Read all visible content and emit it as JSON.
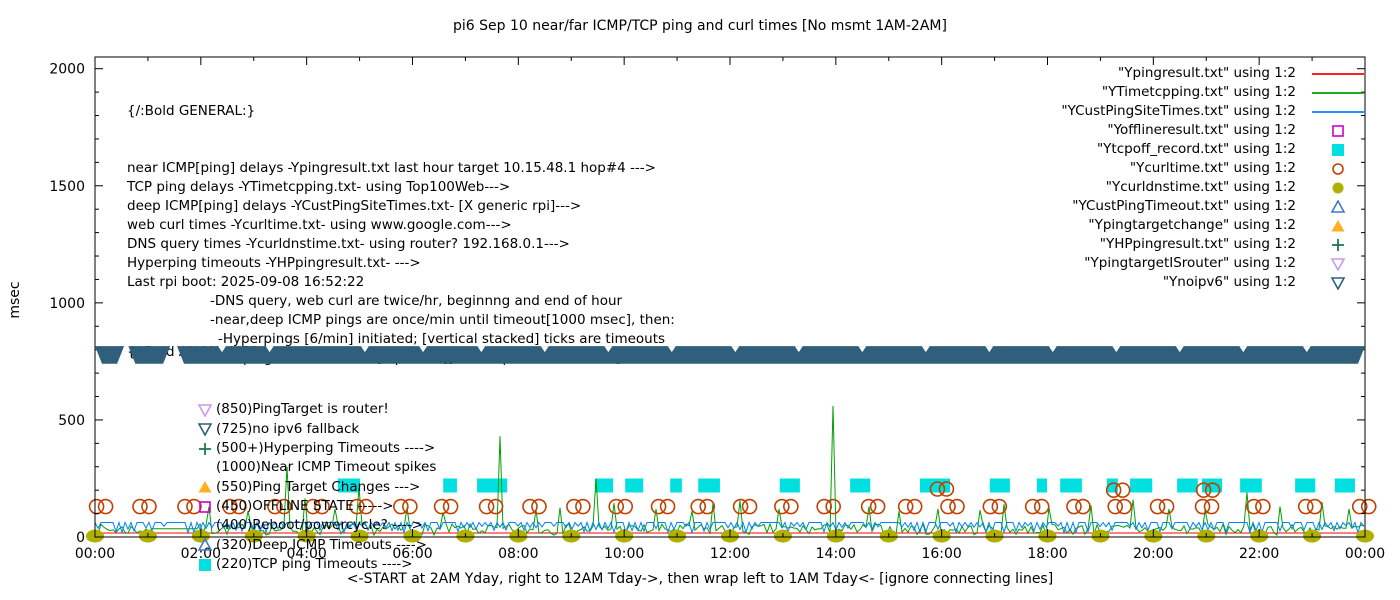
{
  "title": "pi6 Sep 10  near/far ICMP/TCP ping and curl times [No msmt 1AM-2AM]",
  "x_axis": {
    "label": "<-START at 2AM Yday, right to 12AM Tday->, then wrap left to 1AM Tday<- [ignore connecting lines]",
    "tick_labels": [
      "00:00",
      "02:00",
      "04:00",
      "06:00",
      "08:00",
      "10:00",
      "12:00",
      "14:00",
      "16:00",
      "18:00",
      "20:00",
      "22:00",
      "00:00"
    ]
  },
  "y_axis": {
    "label": "msec",
    "tick_labels": [
      "0",
      "500",
      "1000",
      "1500",
      "2000"
    ]
  },
  "legend": {
    "entries": [
      {
        "label": "\"Ypingresult.txt\" using 1:2",
        "marker": "line",
        "color": "#ff0000"
      },
      {
        "label": "\"YTimetcpping.txt\" using 1:2",
        "marker": "line",
        "color": "#00a000"
      },
      {
        "label": "\"YCustPingSiteTimes.txt\" using 1:2",
        "marker": "line",
        "color": "#0080ff"
      },
      {
        "label": "\"Yofflineresult.txt\" using 1:2",
        "marker": "square-open",
        "color": "#cc00cc"
      },
      {
        "label": "\"Ytcpoff_record.txt\" using 1:2",
        "marker": "square-filled",
        "color": "#00e0e0"
      },
      {
        "label": "\"Ycurltime.txt\" using 1:2",
        "marker": "circle-open",
        "color": "#c04000"
      },
      {
        "label": "\"Ycurldnstime.txt\" using 1:2",
        "marker": "circle-filled",
        "color": "#b0b000"
      },
      {
        "label": "\"YCustPingTimeout.txt\" using 1:2",
        "marker": "triangle-up-open",
        "color": "#4477cc"
      },
      {
        "label": "\"Ypingtargetchange\" using 1:2",
        "marker": "triangle-up-filled",
        "color": "#ffb020"
      },
      {
        "label": "\"YHPpingresult.txt\" using 1:2",
        "marker": "plus",
        "color": "#1f7a4d"
      },
      {
        "label": "\"YpingtargetISrouter\" using 1:2",
        "marker": "triangle-down-open",
        "color": "#cc99ee"
      },
      {
        "label": "\"Ynoipv6\" using 1:2",
        "marker": "triangle-down-open",
        "color": "#2f5f7a"
      }
    ]
  },
  "annotations": {
    "general": {
      "header": "{/:Bold GENERAL:}",
      "lines": [
        {
          "indent": 0,
          "text": "near ICMP[ping] delays -Ypingresult.txt last hour target 10.15.48.1 hop#4 --->"
        },
        {
          "indent": 0,
          "text": "TCP ping delays -YTimetcpping.txt- using Top100Web--->"
        },
        {
          "indent": 0,
          "text": "deep ICMP[ping] delays -YCustPingSiteTimes.txt- [X generic rpi]--->"
        },
        {
          "indent": 0,
          "text": "web curl times -Ycurltime.txt- using www.google.com--->"
        },
        {
          "indent": 0,
          "text": "DNS query times -Ycurldnstime.txt- using router? 192.168.0.1--->"
        },
        {
          "indent": 0,
          "text": "Hyperping timeouts -YHPpingresult.txt- --->"
        },
        {
          "indent": 0,
          "text": "Last rpi boot: 2025-09-08 16:52:22"
        },
        {
          "indent": 1,
          "text": "-DNS query, web curl are twice/hr, beginnng and end of hour"
        },
        {
          "indent": 1,
          "text": "-near,deep ICMP pings are once/min until timeout[1000 msec], then:"
        },
        {
          "indent": 2,
          "text": "-Hyperpings [6/min] initiated; [vertical stacked] ticks are timeouts"
        },
        {
          "indent": 1,
          "text": "-TCP pings are once/min [if plotted][use Ytcpoff for timeouts]"
        }
      ]
    },
    "anomalies": {
      "header": "{/:Bold ANOMALIES:}",
      "items": [
        {
          "marker": "triangle-down-open",
          "color": "#cc99ee",
          "text": "(850)PingTarget is router!"
        },
        {
          "marker": "triangle-down-open",
          "color": "#2f5f7a",
          "text": "(725)no ipv6 fallback",
          "occluded_by_band": true
        },
        {
          "marker": "plus",
          "color": "#1f7a4d",
          "text": "(500+)Hyperping Timeouts ---->"
        },
        {
          "marker": "none",
          "color": "",
          "text": "(1000)Near ICMP Timeout spikes"
        },
        {
          "marker": "triangle-up-filled",
          "color": "#ffb020",
          "text": "(550)Ping Target Changes --->"
        },
        {
          "marker": "square-open",
          "color": "#cc00cc",
          "text": "(450)OFFLINE STATE ----->"
        },
        {
          "marker": "none",
          "color": "",
          "text": "(400)Reboot/powercycle? ---->"
        },
        {
          "marker": "triangle-up-open",
          "color": "#4477cc",
          "text": "(320)Deep ICMP Timeouts ---->"
        },
        {
          "marker": "square-filled",
          "color": "#00e0e0",
          "text": "(220)TCP ping Timeouts ---->"
        }
      ]
    }
  },
  "chart_data": {
    "type": "line",
    "x_range_hours": [
      0,
      24
    ],
    "ylim": [
      0,
      2050
    ],
    "grid": false,
    "legend_position": "top-right",
    "series": [
      {
        "name": "Ypingresult.txt",
        "color": "#ff0000",
        "style": "flat-line",
        "baseline_msec": 17
      },
      {
        "name": "YTimetcpping.txt",
        "color": "#00a000",
        "style": "noisy-line",
        "base_msec": 8,
        "noise_msec": 48,
        "flat_gap": {
          "start_hour": 1.05,
          "end_hour": 1.97,
          "msec": 35
        },
        "spikes_hour_msec": [
          [
            2.17,
            130
          ],
          [
            2.9,
            110
          ],
          [
            3.6,
            300
          ],
          [
            3.95,
            165
          ],
          [
            4.55,
            120
          ],
          [
            5.0,
            210
          ],
          [
            5.9,
            125
          ],
          [
            6.6,
            105
          ],
          [
            7.65,
            430
          ],
          [
            8.35,
            115
          ],
          [
            8.8,
            125
          ],
          [
            9.45,
            250
          ],
          [
            9.82,
            145
          ],
          [
            10.6,
            120
          ],
          [
            11.3,
            110
          ],
          [
            11.66,
            145
          ],
          [
            12.2,
            155
          ],
          [
            12.9,
            120
          ],
          [
            13.93,
            560
          ],
          [
            14.6,
            130
          ],
          [
            15.2,
            110
          ],
          [
            15.95,
            120
          ],
          [
            16.7,
            115
          ],
          [
            17.2,
            140
          ],
          [
            18.0,
            125
          ],
          [
            18.8,
            135
          ],
          [
            19.6,
            160
          ],
          [
            20.3,
            120
          ],
          [
            21.0,
            115
          ],
          [
            21.77,
            190
          ],
          [
            22.4,
            130
          ],
          [
            23.2,
            150
          ],
          [
            23.7,
            120
          ]
        ]
      },
      {
        "name": "YCustPingSiteTimes.txt",
        "color": "#0080ff",
        "style": "square-noise",
        "top_msec": 62,
        "dip_msec": 18
      },
      {
        "name": "Ytcpoff_record.txt",
        "color": "#00e0e0",
        "style": "bar-segments",
        "level_msec": 220,
        "segments_hours": [
          [
            4.59,
            5.01
          ],
          [
            6.58,
            6.84
          ],
          [
            7.22,
            7.79
          ],
          [
            9.45,
            9.79
          ],
          [
            10.02,
            10.36
          ],
          [
            10.87,
            11.09
          ],
          [
            11.4,
            11.81
          ],
          [
            12.94,
            13.32
          ],
          [
            14.27,
            14.65
          ],
          [
            15.59,
            16.16
          ],
          [
            16.91,
            17.29
          ],
          [
            17.8,
            17.99
          ],
          [
            18.24,
            18.65
          ],
          [
            19.12,
            19.33
          ],
          [
            19.56,
            19.98
          ],
          [
            20.45,
            20.84
          ],
          [
            20.92,
            21.3
          ],
          [
            21.64,
            22.05
          ],
          [
            22.68,
            23.06
          ],
          [
            23.43,
            23.81
          ]
        ]
      },
      {
        "name": "Ycurltime.txt",
        "color": "#c04000",
        "style": "open-circle-pairs",
        "level_msec": 130,
        "pair_offset_hours": 0.17,
        "pair_start_hours": [
          0.03,
          0.85,
          1.7,
          2.55,
          3.4,
          4.12,
          4.95,
          5.78,
          6.55,
          7.4,
          8.22,
          9.05,
          9.85,
          10.65,
          11.4,
          12.2,
          12.98,
          13.78,
          14.62,
          15.32,
          16.12,
          16.92,
          17.72,
          18.5,
          19.28,
          20.08,
          20.93,
          21.9,
          22.88,
          23.9
        ],
        "high_pairs_hour_msec": [
          [
            15.92,
            205
          ],
          [
            19.25,
            200
          ],
          [
            20.95,
            200
          ]
        ]
      },
      {
        "name": "Ycurldnstime.txt",
        "color": "#b0b000",
        "style": "filled-dots",
        "level_msec": 4,
        "hours": [
          0,
          1,
          2,
          3,
          4,
          5,
          6,
          7,
          8,
          9,
          10,
          11,
          12,
          13,
          14,
          15,
          16,
          17,
          18,
          19,
          20,
          21,
          22,
          23,
          24
        ]
      },
      {
        "name": "Ynoipv6",
        "color": "#2f5f7a",
        "style": "band",
        "band_msec": [
          740,
          815
        ],
        "segments_hours": [
          [
            0,
            0.55
          ],
          [
            0.63,
            1.42
          ],
          [
            1.55,
            24
          ]
        ],
        "notch_hours": [
          2.4,
          3.3,
          5.1,
          6.2,
          7.3,
          8.5,
          9.7,
          10.9,
          12.1,
          13.3,
          14.5,
          15.7,
          16.9,
          18.1,
          19.3,
          20.5,
          21.7,
          22.9
        ]
      }
    ]
  }
}
